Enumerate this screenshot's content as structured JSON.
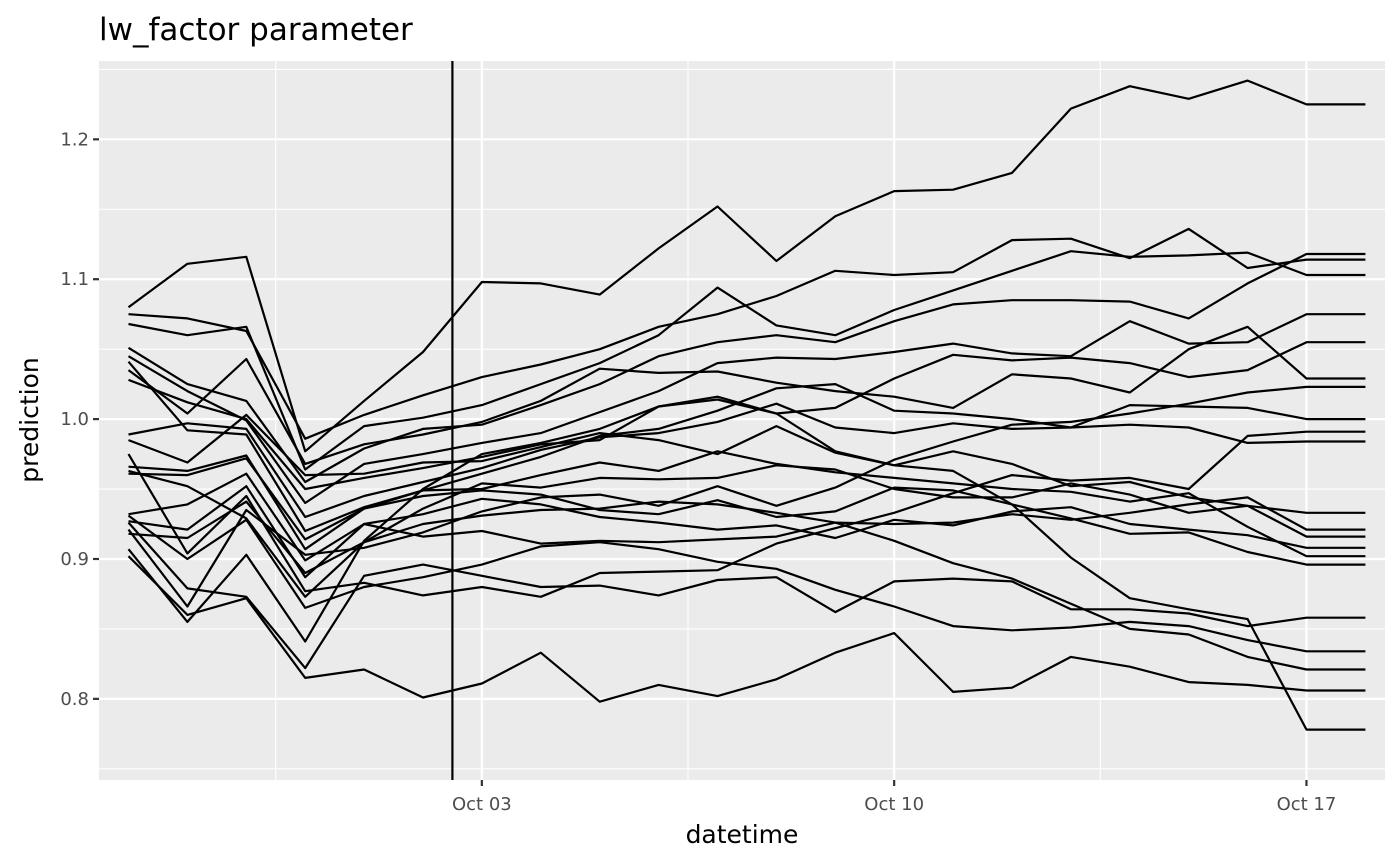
{
  "chart_data": {
    "type": "line",
    "title": "lw_factor parameter",
    "xlabel": "datetime",
    "ylabel": "prediction",
    "x_tick_labels": [
      "Oct 03",
      "Oct 10",
      "Oct 17"
    ],
    "x_tick_dates": [
      "2024-10-03",
      "2024-10-10",
      "2024-10-17"
    ],
    "y_tick_labels": [
      "0.8",
      "0.9",
      "1.0",
      "1.1",
      "1.2"
    ],
    "y_ticks": [
      0.8,
      0.9,
      1.0,
      1.1,
      1.2
    ],
    "xlim": [
      "2024-09-26T12:00",
      "2024-10-18T08:00"
    ],
    "ylim": [
      0.742,
      1.256
    ],
    "grid": true,
    "line_color": "#000000",
    "vline": "2024-10-02",
    "x": [
      "2024-09-27",
      "2024-09-28",
      "2024-09-29",
      "2024-09-30",
      "2024-10-01",
      "2024-10-02",
      "2024-10-03",
      "2024-10-04",
      "2024-10-05",
      "2024-10-06",
      "2024-10-07",
      "2024-10-08",
      "2024-10-09",
      "2024-10-10",
      "2024-10-11",
      "2024-10-12",
      "2024-10-13",
      "2024-10-14",
      "2024-10-15",
      "2024-10-16",
      "2024-10-17",
      "2024-10-18"
    ],
    "series": [
      {
        "values": [
          1.08,
          1.111,
          1.116,
          0.977,
          1.013,
          1.048,
          1.098,
          1.097,
          1.089,
          1.122,
          1.152,
          1.113,
          1.145,
          1.163,
          1.164,
          1.176,
          1.222,
          1.238,
          1.229,
          1.242,
          1.225,
          1.225
        ]
      },
      {
        "values": [
          1.075,
          1.072,
          1.063,
          0.986,
          1.003,
          1.017,
          1.03,
          1.039,
          1.05,
          1.066,
          1.075,
          1.088,
          1.106,
          1.103,
          1.105,
          1.128,
          1.129,
          1.115,
          1.136,
          1.108,
          1.114,
          1.114
        ]
      },
      {
        "values": [
          1.068,
          1.06,
          1.066,
          0.964,
          0.995,
          1.001,
          1.01,
          1.025,
          1.04,
          1.06,
          1.094,
          1.067,
          1.06,
          1.078,
          1.092,
          1.106,
          1.12,
          1.116,
          1.117,
          1.119,
          1.103,
          1.103
        ]
      },
      {
        "values": [
          1.051,
          1.025,
          1.013,
          0.955,
          0.979,
          0.993,
          0.996,
          1.01,
          1.025,
          1.045,
          1.055,
          1.06,
          1.055,
          1.07,
          1.082,
          1.085,
          1.085,
          1.084,
          1.072,
          1.097,
          1.118,
          1.118
        ]
      },
      {
        "values": [
          1.045,
          1.02,
          0.999,
          0.94,
          0.968,
          0.975,
          0.983,
          0.99,
          1.005,
          1.02,
          1.04,
          1.044,
          1.043,
          1.048,
          1.054,
          1.047,
          1.045,
          1.07,
          1.054,
          1.055,
          1.075,
          1.075
        ]
      },
      {
        "values": [
          1.035,
          1.004,
          1.043,
          0.968,
          0.982,
          0.989,
          0.998,
          1.013,
          1.036,
          1.033,
          1.034,
          1.026,
          1.02,
          1.016,
          1.008,
          1.032,
          1.029,
          1.019,
          1.05,
          1.066,
          1.029,
          1.029
        ]
      },
      {
        "values": [
          1.028,
          1.012,
          1.0,
          0.95,
          0.958,
          0.965,
          0.973,
          0.982,
          0.985,
          1.009,
          1.014,
          1.004,
          1.008,
          1.029,
          1.046,
          1.042,
          1.044,
          1.04,
          1.03,
          1.035,
          1.055,
          1.055
        ]
      },
      {
        "values": [
          0.989,
          0.997,
          0.993,
          0.93,
          0.945,
          0.955,
          0.965,
          0.978,
          0.987,
          0.99,
          0.998,
          1.011,
          0.994,
          0.99,
          0.997,
          0.993,
          0.994,
          0.996,
          0.994,
          0.983,
          0.984,
          0.984
        ]
      },
      {
        "values": [
          0.985,
          0.969,
          1.003,
          0.96,
          0.961,
          0.969,
          0.97,
          0.98,
          0.99,
          0.985,
          0.975,
          0.995,
          0.976,
          0.967,
          0.977,
          0.968,
          0.952,
          0.955,
          0.944,
          0.938,
          0.933,
          0.933
        ]
      },
      {
        "values": [
          0.966,
          0.963,
          0.974,
          0.907,
          0.936,
          0.949,
          0.95,
          0.96,
          0.969,
          0.963,
          0.977,
          0.968,
          0.962,
          0.958,
          0.954,
          0.95,
          0.948,
          0.941,
          0.947,
          0.923,
          0.902,
          0.902
        ]
      },
      {
        "values": [
          0.961,
          0.96,
          0.972,
          0.914,
          0.936,
          0.945,
          0.949,
          0.946,
          0.935,
          0.932,
          0.942,
          0.93,
          0.934,
          0.951,
          0.949,
          0.939,
          0.929,
          0.918,
          0.919,
          0.905,
          0.896,
          0.896
        ]
      },
      {
        "values": [
          0.932,
          0.939,
          0.961,
          0.899,
          0.925,
          0.932,
          0.943,
          0.939,
          0.93,
          0.926,
          0.921,
          0.924,
          0.915,
          0.928,
          0.924,
          0.934,
          0.937,
          0.925,
          0.921,
          0.917,
          0.908,
          0.908
        ]
      },
      {
        "values": [
          0.927,
          0.921,
          0.952,
          0.887,
          0.925,
          0.916,
          0.92,
          0.911,
          0.913,
          0.912,
          0.914,
          0.916,
          0.926,
          0.925,
          0.926,
          0.932,
          0.928,
          0.933,
          0.939,
          0.944,
          0.921,
          0.921
        ]
      },
      {
        "values": [
          0.918,
          0.915,
          0.941,
          0.89,
          0.912,
          0.925,
          0.931,
          0.935,
          0.936,
          0.941,
          0.939,
          0.933,
          0.926,
          0.913,
          0.897,
          0.886,
          0.868,
          0.85,
          0.846,
          0.83,
          0.821,
          0.821
        ]
      },
      {
        "values": [
          0.931,
          0.9,
          0.928,
          0.865,
          0.88,
          0.887,
          0.896,
          0.909,
          0.912,
          0.907,
          0.898,
          0.893,
          0.878,
          0.866,
          0.852,
          0.849,
          0.851,
          0.855,
          0.852,
          0.842,
          0.834,
          0.834
        ]
      },
      {
        "values": [
          0.926,
          0.879,
          0.873,
          0.822,
          0.888,
          0.896,
          0.888,
          0.88,
          0.881,
          0.874,
          0.885,
          0.887,
          0.862,
          0.884,
          0.886,
          0.884,
          0.864,
          0.864,
          0.861,
          0.852,
          0.858,
          0.858
        ]
      },
      {
        "values": [
          0.902,
          0.86,
          0.872,
          0.815,
          0.821,
          0.801,
          0.811,
          0.833,
          0.798,
          0.81,
          0.802,
          0.814,
          0.833,
          0.847,
          0.805,
          0.808,
          0.83,
          0.823,
          0.812,
          0.81,
          0.806,
          0.806
        ]
      },
      {
        "values": [
          0.907,
          0.855,
          0.903,
          0.841,
          0.913,
          0.95,
          0.975,
          0.983,
          0.993,
          1.009,
          1.016,
          1.004,
          0.977,
          0.967,
          0.963,
          0.939,
          0.901,
          0.872,
          0.864,
          0.857,
          0.778,
          0.778
        ]
      },
      {
        "values": [
          0.975,
          0.904,
          0.945,
          0.877,
          0.883,
          0.874,
          0.88,
          0.873,
          0.89,
          0.891,
          0.892,
          0.911,
          0.922,
          0.933,
          0.947,
          0.96,
          0.956,
          0.958,
          0.95,
          0.988,
          0.991,
          0.991
        ]
      },
      {
        "values": [
          0.963,
          0.952,
          0.929,
          0.873,
          0.912,
          0.936,
          0.954,
          0.951,
          0.958,
          0.957,
          0.958,
          0.967,
          0.964,
          0.95,
          0.944,
          0.944,
          0.954,
          0.946,
          0.933,
          0.938,
          0.916,
          0.916
        ]
      },
      {
        "values": [
          1.041,
          0.992,
          0.989,
          0.92,
          0.937,
          0.949,
          0.961,
          0.973,
          0.988,
          0.993,
          1.006,
          1.022,
          1.025,
          1.006,
          1.004,
          1.0,
          0.994,
          1.01,
          1.009,
          1.008,
          1.0,
          1.0
        ]
      },
      {
        "values": [
          0.921,
          0.866,
          0.935,
          0.903,
          0.908,
          0.919,
          0.934,
          0.944,
          0.946,
          0.938,
          0.952,
          0.938,
          0.951,
          0.971,
          0.984,
          0.996,
          0.998,
          1.004,
          1.011,
          1.019,
          1.023,
          1.023
        ]
      }
    ]
  }
}
